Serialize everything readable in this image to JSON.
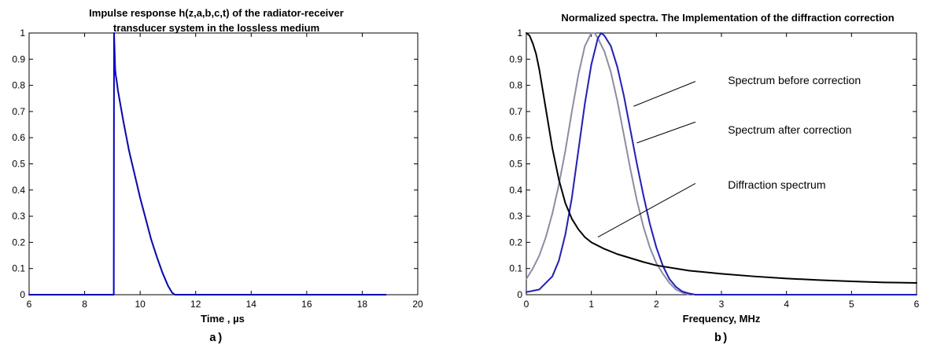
{
  "chart_data": [
    {
      "type": "line",
      "title_lines": [
        "Impulse response h(z,a,b,c,t) of the radiator-receiver",
        "transducer system in the lossless medium"
      ],
      "xlabel": "Time , µs",
      "ylabel": "",
      "panel_label": "a)",
      "xlim": [
        6,
        20
      ],
      "ylim": [
        0,
        1
      ],
      "xticks": [
        6,
        8,
        10,
        12,
        14,
        16,
        18,
        20
      ],
      "yticks": [
        0,
        0.1,
        0.2,
        0.3,
        0.4,
        0.5,
        0.6,
        0.7,
        0.8,
        0.9,
        1
      ],
      "ytick_labels": [
        "0",
        "0.1",
        "0.2",
        "0.3",
        "0.4",
        "0.5",
        "0.6",
        "0.7",
        "0.8",
        "0.9",
        "1"
      ],
      "grid": false,
      "series": [
        {
          "color": "#0000e0",
          "x": [
            6,
            9.05,
            9.06,
            9.1,
            9.12,
            9.15,
            9.2,
            9.3,
            9.4,
            9.5,
            9.6,
            9.8,
            10.0,
            10.2,
            10.4,
            10.6,
            10.8,
            11.0,
            11.15,
            11.25,
            12,
            14,
            16,
            18,
            18.85
          ],
          "y": [
            0,
            0,
            1,
            0.86,
            0.84,
            0.82,
            0.78,
            0.72,
            0.66,
            0.605,
            0.55,
            0.46,
            0.37,
            0.29,
            0.21,
            0.145,
            0.085,
            0.035,
            0.008,
            0,
            0,
            0,
            0,
            0,
            0
          ]
        }
      ]
    },
    {
      "type": "line",
      "title_lines": [
        "Normalized spectra. The Implementation of the diffraction correction"
      ],
      "xlabel": "Frequency, MHz",
      "ylabel": "",
      "panel_label": "b)",
      "xlim": [
        0,
        6
      ],
      "ylim": [
        0,
        1
      ],
      "xticks": [
        0,
        1,
        2,
        3,
        4,
        5,
        6
      ],
      "yticks": [
        0,
        0.1,
        0.2,
        0.3,
        0.4,
        0.5,
        0.6,
        0.7,
        0.8,
        0.9,
        1
      ],
      "ytick_labels": [
        "0",
        "0.1",
        "0.2",
        "0.3",
        "0.4",
        "0.5",
        "0.6",
        "0.7",
        "0.8",
        "0.9",
        "1"
      ],
      "grid": false,
      "series": [
        {
          "name": "Spectrum before correction",
          "color": "#8c8ca8",
          "x": [
            0,
            0.1,
            0.2,
            0.3,
            0.4,
            0.5,
            0.6,
            0.7,
            0.8,
            0.9,
            1.0,
            1.05,
            1.1,
            1.2,
            1.3,
            1.4,
            1.5,
            1.6,
            1.7,
            1.8,
            1.9,
            2.0,
            2.1,
            2.2,
            2.3,
            2.4,
            2.5
          ],
          "y": [
            0.06,
            0.1,
            0.15,
            0.22,
            0.31,
            0.42,
            0.55,
            0.7,
            0.84,
            0.95,
            1.0,
            1.0,
            0.98,
            0.93,
            0.85,
            0.74,
            0.61,
            0.48,
            0.36,
            0.26,
            0.18,
            0.12,
            0.08,
            0.045,
            0.02,
            0.008,
            0.0
          ]
        },
        {
          "name": "Spectrum after correction",
          "color": "#1a1ae6",
          "x": [
            0,
            0.2,
            0.4,
            0.5,
            0.6,
            0.7,
            0.8,
            0.9,
            1.0,
            1.1,
            1.15,
            1.2,
            1.3,
            1.4,
            1.5,
            1.6,
            1.7,
            1.8,
            1.9,
            2.0,
            2.1,
            2.2,
            2.3,
            2.4,
            2.5,
            2.6,
            2.8,
            3,
            4,
            5,
            6
          ],
          "y": [
            0.01,
            0.02,
            0.07,
            0.13,
            0.23,
            0.37,
            0.55,
            0.73,
            0.88,
            0.98,
            1.0,
            0.99,
            0.95,
            0.87,
            0.76,
            0.63,
            0.5,
            0.38,
            0.27,
            0.18,
            0.11,
            0.06,
            0.03,
            0.012,
            0.005,
            0.0,
            0,
            0,
            0,
            0,
            0
          ]
        },
        {
          "name": "Diffraction spectrum",
          "color": "#000000",
          "x": [
            0,
            0.05,
            0.1,
            0.15,
            0.2,
            0.3,
            0.4,
            0.5,
            0.6,
            0.7,
            0.8,
            0.9,
            1.0,
            1.2,
            1.4,
            1.6,
            1.8,
            2.0,
            2.5,
            3.0,
            3.5,
            4.0,
            4.5,
            5.0,
            5.5,
            6.0
          ],
          "y": [
            1.0,
            0.99,
            0.96,
            0.92,
            0.86,
            0.71,
            0.56,
            0.44,
            0.35,
            0.29,
            0.25,
            0.22,
            0.2,
            0.175,
            0.155,
            0.14,
            0.125,
            0.112,
            0.092,
            0.08,
            0.07,
            0.062,
            0.056,
            0.051,
            0.047,
            0.045
          ]
        }
      ],
      "annotations": [
        {
          "text": "Spectrum before correction",
          "x": 3.1,
          "y": 0.82,
          "arrow_from": [
            2.6,
            0.815
          ],
          "arrow_to": [
            1.65,
            0.72
          ]
        },
        {
          "text": "Spectrum after correction",
          "x": 3.1,
          "y": 0.63,
          "arrow_from": [
            2.6,
            0.66
          ],
          "arrow_to": [
            1.7,
            0.58
          ]
        },
        {
          "text": "Diffraction spectrum",
          "x": 3.1,
          "y": 0.42,
          "arrow_from": [
            2.6,
            0.425
          ],
          "arrow_to": [
            1.1,
            0.22
          ]
        }
      ]
    }
  ]
}
